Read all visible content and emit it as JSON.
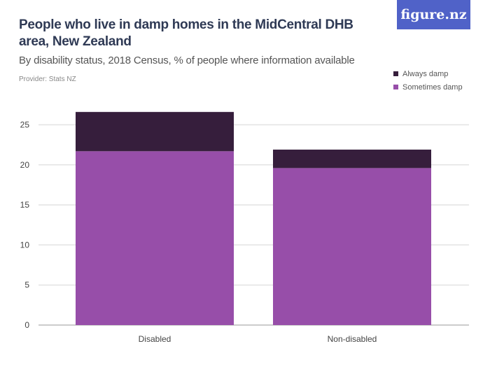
{
  "title": "People who live in damp homes in the MidCentral DHB area, New Zealand",
  "subtitle": "By disability status, 2018 Census, % of people where information available",
  "provider": "Provider: Stats NZ",
  "logo": "figure.nz",
  "chart_data": {
    "type": "bar",
    "stacked": true,
    "categories": [
      "Disabled",
      "Non-disabled"
    ],
    "series": [
      {
        "name": "Sometimes damp",
        "color": "#974ea9",
        "values": [
          21.7,
          19.6
        ]
      },
      {
        "name": "Always damp",
        "color": "#361e3c",
        "values": [
          4.9,
          2.3
        ]
      }
    ],
    "yticks": [
      0,
      5,
      10,
      15,
      20,
      25
    ],
    "ylim": [
      0,
      27
    ],
    "grid": true,
    "legend": "top-right"
  }
}
